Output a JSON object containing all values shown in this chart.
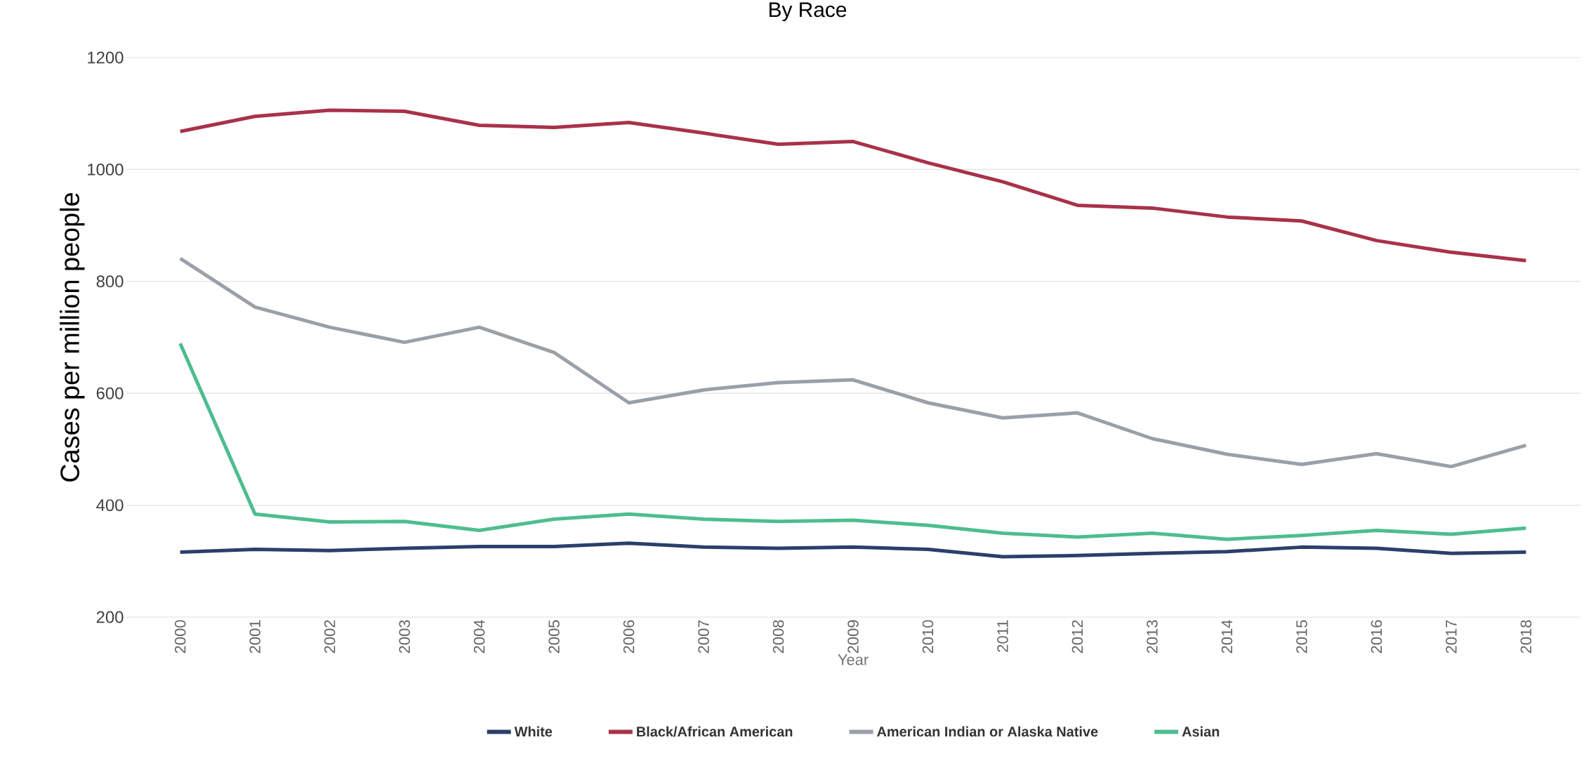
{
  "chart_data": {
    "type": "line",
    "title": "By Race",
    "xlabel": "Year",
    "ylabel": "Cases per million people",
    "categories": [
      "2000",
      "2001",
      "2002",
      "2003",
      "2004",
      "2005",
      "2006",
      "2007",
      "2008",
      "2009",
      "2010",
      "2011",
      "2012",
      "2013",
      "2014",
      "2015",
      "2016",
      "2017",
      "2018"
    ],
    "series": [
      {
        "name": "White",
        "color": "#2b3f6b",
        "values": [
          316,
          321,
          319,
          323,
          326,
          326,
          332,
          325,
          323,
          325,
          321,
          308,
          310,
          314,
          317,
          325,
          323,
          314,
          316
        ]
      },
      {
        "name": "Black/African American",
        "color": "#a83249",
        "values": [
          1068,
          1095,
          1106,
          1104,
          1079,
          1075,
          1084,
          1065,
          1045,
          1050,
          1012,
          978,
          936,
          931,
          915,
          908,
          873,
          852,
          837
        ]
      },
      {
        "name": "American Indian or Alaska Native",
        "color": "#9aa0a8",
        "values": [
          841,
          754,
          718,
          691,
          718,
          673,
          583,
          606,
          619,
          624,
          583,
          556,
          565,
          519,
          491,
          473,
          492,
          469,
          507
        ]
      },
      {
        "name": "Asian",
        "color": "#4dbd8f",
        "values": [
          689,
          384,
          370,
          371,
          355,
          375,
          384,
          375,
          371,
          373,
          364,
          350,
          343,
          350,
          339,
          346,
          355,
          348,
          359
        ]
      }
    ],
    "ylim": [
      200,
      1200
    ],
    "yticks": [
      200,
      400,
      600,
      800,
      1000,
      1200
    ],
    "grid": "y",
    "legend": "bottom"
  }
}
